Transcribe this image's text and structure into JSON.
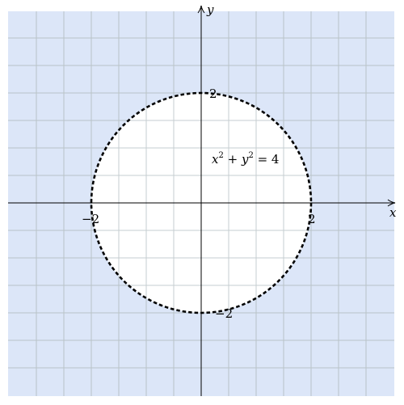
{
  "axes": {
    "x_label": "x",
    "y_label": "y"
  },
  "ticks": {
    "x_neg": "−2",
    "x_pos": "2",
    "y_pos": "2",
    "y_neg": "−2"
  },
  "equation": {
    "x": "x",
    "x_exp": "2",
    "plus": " + ",
    "y": "y",
    "y_exp": "2",
    "rhs": " = 4"
  },
  "colors": {
    "shaded_region": "#dce6f8",
    "grid": "#b9c3c7",
    "circle_interior": "#ffffff",
    "circle_stroke": "#000000"
  },
  "chart_data": {
    "type": "implicit-curve",
    "equation": "x^2 + y^2 = 4",
    "radius": 2,
    "center": [
      0,
      0
    ],
    "boundary_style": "dashed",
    "shaded": "outside",
    "xlim": [
      -7,
      7
    ],
    "ylim": [
      -7,
      7
    ],
    "grid": true
  }
}
